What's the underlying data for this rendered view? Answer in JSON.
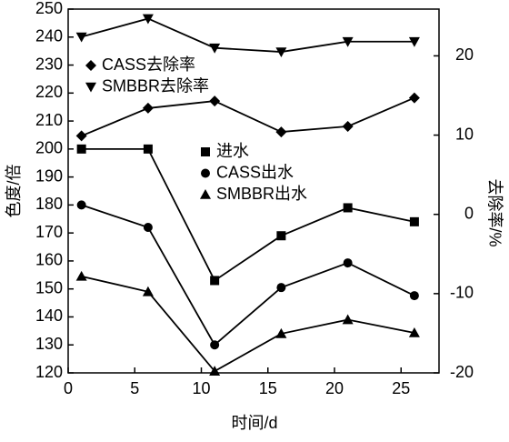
{
  "chart_data": {
    "type": "line",
    "x_label": "时间/d",
    "y_label": "色度/倍",
    "y2_label": "去除率/%",
    "x": [
      1,
      6,
      11,
      16,
      21,
      26
    ],
    "xlim": [
      0,
      27.85
    ],
    "xticks": [
      0,
      5,
      10,
      15,
      20,
      25
    ],
    "ylim": [
      120,
      250
    ],
    "yticks": [
      120,
      130,
      140,
      150,
      160,
      170,
      180,
      190,
      200,
      210,
      220,
      230,
      240,
      250
    ],
    "y2lim": [
      -20,
      25.9
    ],
    "y2ticks": [
      -20,
      -10,
      0,
      10,
      20
    ],
    "grid": false,
    "series": [
      {
        "name": "CASS去除率",
        "color": "#000000",
        "marker": "diamond",
        "axis": "y2",
        "values": [
          9.9,
          13.4,
          14.3,
          10.4,
          11.1,
          14.7
        ]
      },
      {
        "name": "SMBBR去除率",
        "color": "#000000",
        "marker": "triangle-down",
        "axis": "y2",
        "values": [
          22.4,
          24.7,
          21.0,
          20.5,
          21.8,
          21.8
        ]
      },
      {
        "name": "进水",
        "color": "#000000",
        "marker": "square",
        "values": [
          200,
          200,
          153,
          169,
          179,
          174
        ]
      },
      {
        "name": "CASS出水",
        "color": "#000000",
        "marker": "circle",
        "values": [
          180,
          172,
          130,
          150.5,
          159.3,
          147.6
        ]
      },
      {
        "name": "SMBBR出水",
        "color": "#000000",
        "marker": "triangle-up",
        "values": [
          154.5,
          149,
          120.6,
          134,
          139,
          134.3
        ]
      }
    ]
  }
}
